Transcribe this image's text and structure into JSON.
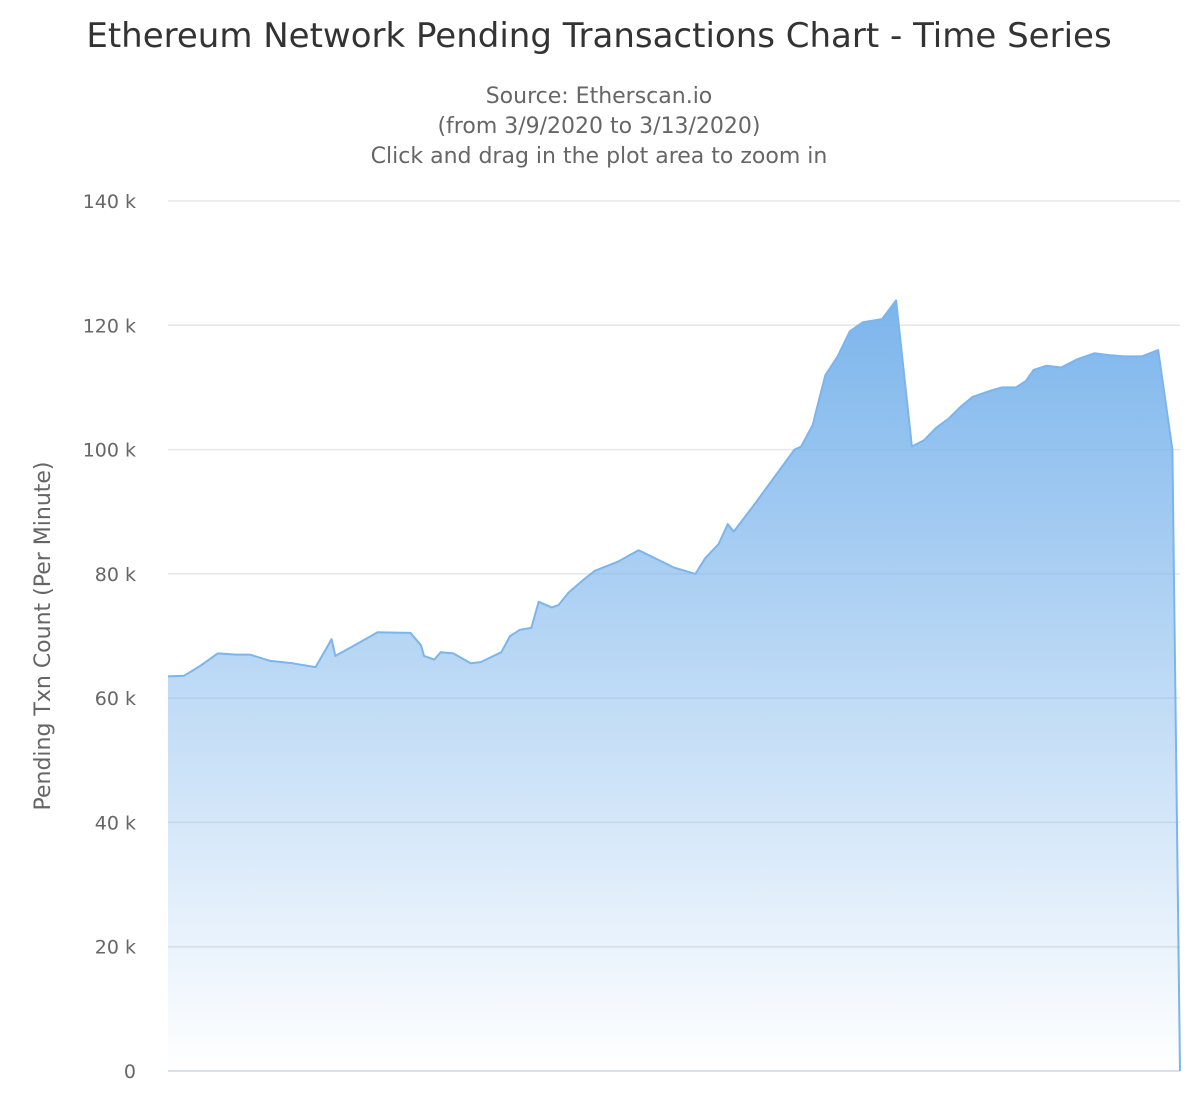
{
  "chart_data": {
    "type": "area",
    "title": "Ethereum Network Pending Transactions Chart - Time Series",
    "subtitle_lines": [
      "Source: Etherscan.io",
      "(from 3/9/2020 to 3/13/2020)",
      "Click and drag in the plot area to zoom in"
    ],
    "xlabel": "",
    "ylabel": "Pending Txn Count (Per Minute)",
    "ylim": [
      0,
      140000
    ],
    "y_ticks": [
      0,
      20000,
      40000,
      60000,
      80000,
      100000,
      120000,
      140000
    ],
    "y_tick_labels": [
      "0",
      "20 k",
      "40 k",
      "60 k",
      "80 k",
      "100 k",
      "120 k",
      "140 k"
    ],
    "xlim": [
      "2020-03-09",
      "2020-03-13"
    ],
    "grid": true,
    "legend": "none",
    "series": [
      {
        "color": "#7cb5ec",
        "x": [
          "2020-03-09 00:00",
          "2020-03-09 01:31",
          "2020-03-09 03:04",
          "2020-03-09 04:43",
          "2020-03-09 06:29",
          "2020-03-09 07:46",
          "2020-03-09 09:43",
          "2020-03-09 11:49",
          "2020-03-09 14:00",
          "2020-03-09 15:31",
          "2020-03-09 15:52",
          "2020-03-09 17:10",
          "2020-03-09 19:53",
          "2020-03-09 23:00",
          "2020-03-10 00:00",
          "2020-03-10 00:17",
          "2020-03-10 01:15",
          "2020-03-10 01:52",
          "2020-03-10 03:04",
          "2020-03-10 04:43",
          "2020-03-10 05:40",
          "2020-03-10 07:37",
          "2020-03-10 08:27",
          "2020-03-10 09:01",
          "2020-03-10 09:22",
          "2020-03-10 10:28",
          "2020-03-10 11:10",
          "2020-03-10 12:25",
          "2020-03-10 13:04",
          "2020-03-10 14:00",
          "2020-03-10 15:22",
          "2020-03-10 16:29",
          "2020-03-10 18:44",
          "2020-03-10 20:38",
          "2020-03-10 22:49",
          "2020-03-11 00:00",
          "2020-03-11 02:02",
          "2020-03-11 02:57",
          "2020-03-11 04:14",
          "2020-03-11 05:06",
          "2020-03-11 05:40",
          "2020-03-11 07:28",
          "2020-03-11 09:43",
          "2020-03-11 11:26",
          "2020-03-11 12:04",
          "2020-03-11 13:10",
          "2020-03-11 13:27",
          "2020-03-11 14:22",
          "2020-03-11 15:31",
          "2020-03-11 16:40",
          "2020-03-11 17:55",
          "2020-03-11 19:44",
          "2020-03-11 21:04",
          "2020-03-11 22:34",
          "2020-03-11 23:43",
          "2020-03-12 00:52",
          "2020-03-12 02:04",
          "2020-03-12 03:15",
          "2020-03-12 04:20",
          "2020-03-12 06:06",
          "2020-03-12 07:06",
          "2020-03-12 08:27",
          "2020-03-12 09:10",
          "2020-03-12 09:22",
          "2020-03-12 10:07",
          "2020-03-12 11:20",
          "2020-03-12 12:44",
          "2020-03-12 14:12",
          "2020-03-12 15:52",
          "2020-03-12 17:16",
          "2020-03-12 18:44",
          "2020-03-12 20:23",
          "2020-03-12 21:56",
          "2020-03-12 23:17",
          "2020-03-13 00:26",
          "2020-03-13 00:43",
          "2020-03-13 01:35",
          "2020-03-13 03:15",
          "2020-03-13 04:43"
        ],
        "y": [
          63500,
          63600,
          65200,
          67200,
          67000,
          67000,
          66000,
          65600,
          65000,
          69500,
          66800,
          68000,
          70600,
          70500,
          68500,
          66800,
          66200,
          67400,
          67200,
          65600,
          65800,
          67400,
          70000,
          70600,
          71000,
          71300,
          75500,
          74600,
          75000,
          77000,
          79000,
          80500,
          82000,
          83800,
          82000,
          81000,
          80000,
          82500,
          84800,
          88000,
          86800,
          90800,
          96000,
          100000,
          100500,
          104000,
          106000,
          112000,
          115000,
          119000,
          120500,
          121000,
          124000,
          100500,
          101500,
          103500,
          105000,
          107000,
          108500,
          109500,
          110000,
          110000,
          110800,
          111000,
          112800,
          113500,
          113200,
          114500,
          115500,
          115200,
          115000,
          115000,
          116000,
          100000,
          101000,
          0,
          0,
          0,
          0
        ]
      }
    ]
  }
}
